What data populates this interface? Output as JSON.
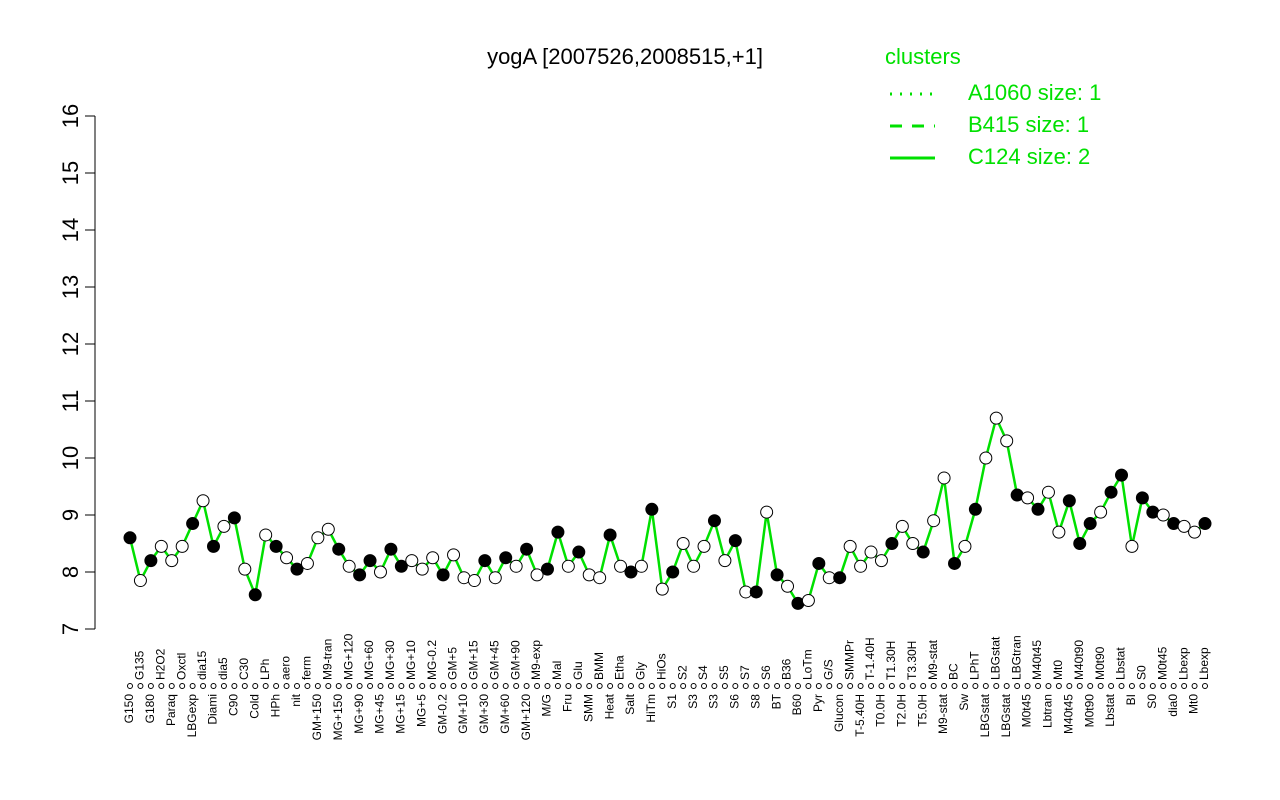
{
  "chart_data": {
    "type": "line",
    "title": "yogA [2007526,2008515,+1]",
    "legend_title": "clusters",
    "legend": [
      {
        "name": "A1060 size: 1",
        "dash": "dotted"
      },
      {
        "name": "B415 size: 1",
        "dash": "dashed"
      },
      {
        "name": "C124 size: 2",
        "dash": "solid"
      }
    ],
    "legend_color": "#00e000",
    "categories": [
      "G150",
      "G135",
      "G180",
      "H2O2",
      "Paraq",
      "Oxctl",
      "LBGexp",
      "dia15",
      "Diami",
      "dia5",
      "C90",
      "C30",
      "Cold",
      "LPh",
      "HPh",
      "aero",
      "nit",
      "ferm",
      "GM+150",
      "M9-tran",
      "MG+150",
      "MG+120",
      "MG+90",
      "MG+60",
      "MG+45",
      "MG+30",
      "MG+15",
      "MG+10",
      "MG+5",
      "MG-0.2",
      "GM-0.2",
      "GM+5",
      "GM+10",
      "GM+15",
      "GM+30",
      "GM+45",
      "GM+60",
      "GM+90",
      "GM+120",
      "M9-exp",
      "M/G",
      "Mal",
      "Fru",
      "Glu",
      "SMM",
      "BMM",
      "Heat",
      "Etha",
      "Salt",
      "Gly",
      "HiTm",
      "HiOs",
      "S1",
      "S2",
      "S3",
      "S4",
      "S3",
      "S5",
      "S6",
      "S7",
      "S8",
      "S6",
      "BT",
      "B36",
      "B60",
      "LoTm",
      "Pyr",
      "G/S",
      "Glucon",
      "SMMPr",
      "T-5.40H",
      "T-1.40H",
      "T0.0H",
      "T1.30H",
      "T2.0H",
      "T3.30H",
      "T5.0H",
      "M9-stat",
      "M9-stat",
      "BC",
      "Sw",
      "LPhT",
      "LBGstat",
      "LBGstat",
      "LBGstat",
      "LBGtran",
      "M0t45",
      "M40t45",
      "Lbtran",
      "Mt0",
      "M40t45",
      "M40t90",
      "M0t90",
      "M0t90",
      "Lbstat",
      "Lbstat",
      "BI",
      "S0",
      "S0",
      "M0t45",
      "dia0",
      "Lbexp",
      "Mt0",
      "Lbexp"
    ],
    "series": [
      {
        "name": "C124 size: 2",
        "color": "#00e000",
        "values": [
          8.6,
          7.85,
          8.2,
          8.45,
          8.2,
          8.45,
          8.85,
          9.25,
          8.45,
          8.8,
          8.95,
          8.05,
          7.6,
          8.65,
          8.45,
          8.25,
          8.05,
          8.15,
          8.6,
          8.75,
          8.4,
          8.1,
          7.95,
          8.2,
          8.0,
          8.4,
          8.1,
          8.2,
          8.05,
          8.25,
          7.95,
          8.3,
          7.9,
          7.85,
          8.2,
          7.9,
          8.25,
          8.1,
          8.4,
          7.95,
          8.05,
          8.7,
          8.1,
          8.35,
          7.95,
          7.9,
          8.65,
          8.1,
          8.0,
          8.1,
          9.1,
          7.7,
          8.0,
          8.5,
          8.1,
          8.45,
          8.9,
          8.2,
          8.55,
          7.65,
          7.65,
          9.05,
          7.95,
          7.75,
          7.45,
          7.5,
          8.15,
          7.9,
          7.9,
          8.45,
          8.1,
          8.35,
          8.2,
          8.5,
          8.8,
          8.5,
          8.35,
          8.9,
          9.65,
          8.15,
          8.45,
          9.1,
          10.0,
          10.7,
          10.3,
          9.35,
          9.3,
          9.1,
          9.4,
          8.7,
          9.25,
          8.5,
          8.85,
          9.05,
          9.4,
          9.7,
          8.45,
          9.3,
          9.05,
          9.0,
          8.85,
          8.8,
          8.7,
          8.85
        ],
        "point_colors": [
          "#000",
          "#fff",
          "#000",
          "#fff",
          "#fff",
          "#fff",
          "#000",
          "#fff",
          "#000",
          "#fff",
          "#000",
          "#fff",
          "#000",
          "#fff",
          "#000",
          "#fff",
          "#000",
          "#fff",
          "#fff",
          "#fff",
          "#000",
          "#fff",
          "#000",
          "#000",
          "#fff",
          "#000",
          "#000",
          "#fff",
          "#fff",
          "#fff",
          "#000",
          "#fff",
          "#fff",
          "#fff",
          "#000",
          "#fff",
          "#000",
          "#fff",
          "#000",
          "#fff",
          "#000",
          "#000",
          "#fff",
          "#000",
          "#fff",
          "#fff",
          "#000",
          "#fff",
          "#000",
          "#fff",
          "#000",
          "#fff",
          "#000",
          "#fff",
          "#fff",
          "#fff",
          "#000",
          "#fff",
          "#000",
          "#fff",
          "#000",
          "#fff",
          "#000",
          "#fff",
          "#000",
          "#fff",
          "#000",
          "#fff",
          "#000",
          "#fff",
          "#fff",
          "#fff",
          "#fff",
          "#000",
          "#fff",
          "#fff",
          "#000",
          "#fff",
          "#fff",
          "#000",
          "#fff",
          "#000",
          "#fff",
          "#fff",
          "#fff",
          "#000",
          "#fff",
          "#000",
          "#fff",
          "#fff",
          "#000",
          "#000",
          "#000",
          "#fff",
          "#000",
          "#000",
          "#fff",
          "#000",
          "#000",
          "#fff",
          "#000",
          "#fff",
          "#fff",
          "#000"
        ]
      }
    ],
    "ylim": [
      7,
      16
    ],
    "yticks": [
      7,
      8,
      9,
      10,
      11,
      12,
      13,
      14,
      15,
      16
    ]
  }
}
